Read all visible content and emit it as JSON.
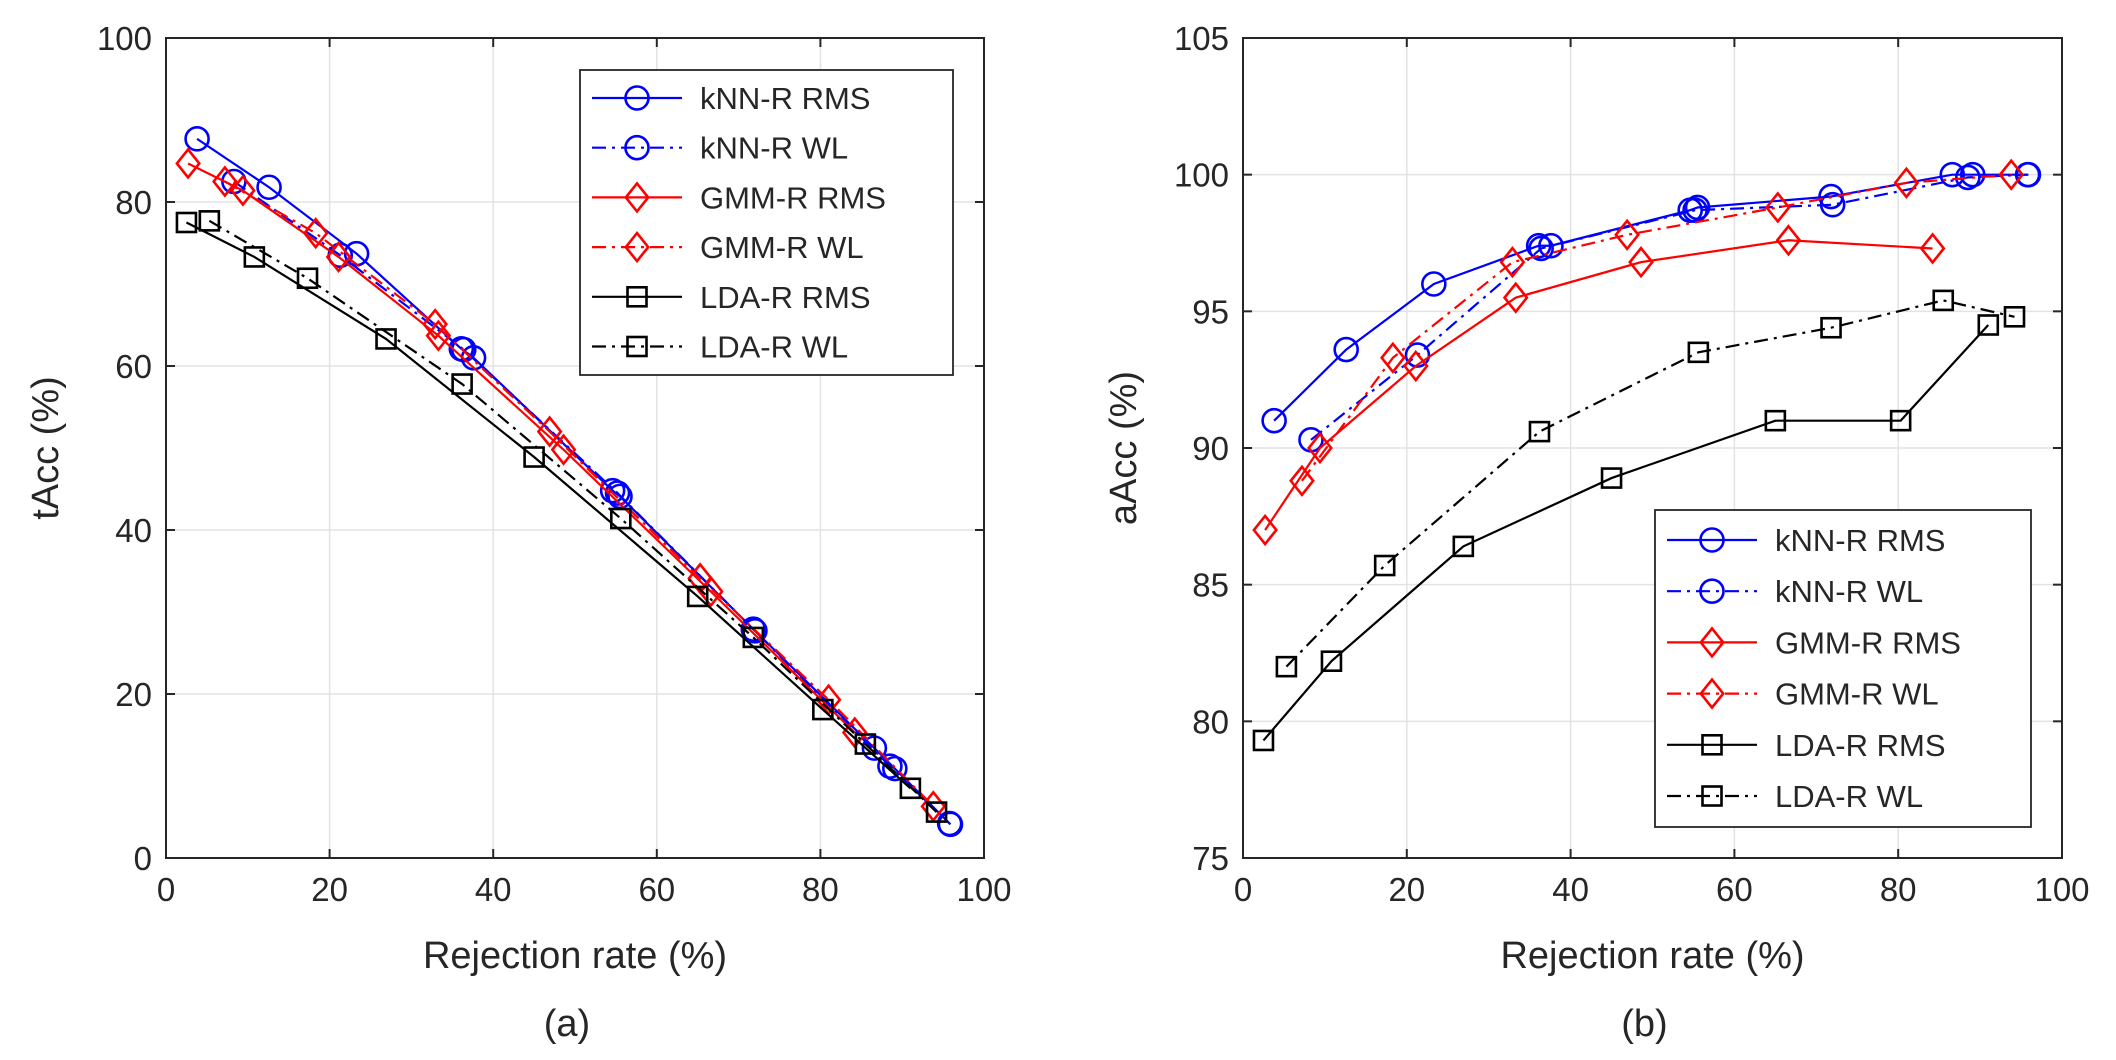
{
  "chart_data": [
    {
      "type": "line",
      "caption": "(a)",
      "xlabel": "Rejection rate (%)",
      "ylabel": "tAcc (%)",
      "xlim": [
        0,
        100
      ],
      "ylim": [
        0,
        100
      ],
      "xticks": [
        "0",
        "20",
        "40",
        "60",
        "80",
        "100"
      ],
      "yticks": [
        "0",
        "20",
        "40",
        "60",
        "80",
        "100"
      ],
      "grid": true,
      "legend_position": "top-right",
      "series": [
        {
          "name": "kNN-R RMS",
          "color": "#0000ff",
          "dash": "solid",
          "marker": "circle",
          "x": [
            3.8,
            12.6,
            23.3,
            36.1,
            37.6,
            54.6,
            55.5,
            71.8,
            86.6,
            89.1,
            95.9
          ],
          "y": [
            87.7,
            81.8,
            73.7,
            62.1,
            61.0,
            44.8,
            44.1,
            27.9,
            13.4,
            10.9,
            4.1
          ]
        },
        {
          "name": "kNN-R WL",
          "color": "#0000ff",
          "dash": "dashdot",
          "marker": "circle",
          "x": [
            8.3,
            21.3,
            36.4,
            55.2,
            72.0,
            88.5,
            95.8
          ],
          "y": [
            82.5,
            73.5,
            62.0,
            44.5,
            27.7,
            11.2,
            4.2
          ]
        },
        {
          "name": "GMM-R RMS",
          "color": "#ff0000",
          "dash": "solid",
          "marker": "diamond",
          "x": [
            2.7,
            9.4,
            21.1,
            33.3,
            48.6,
            66.6,
            84.2
          ],
          "y": [
            84.7,
            81.4,
            73.3,
            63.7,
            49.8,
            32.5,
            15.3
          ]
        },
        {
          "name": "GMM-R WL",
          "color": "#ff0000",
          "dash": "dashdot",
          "marker": "diamond",
          "x": [
            7.2,
            18.3,
            32.9,
            46.9,
            65.3,
            81.0,
            93.8
          ],
          "y": [
            82.5,
            76.2,
            65.1,
            52.0,
            34.1,
            19.3,
            6.3
          ]
        },
        {
          "name": "LDA-R RMS",
          "color": "#000000",
          "dash": "solid",
          "marker": "square",
          "x": [
            2.5,
            10.8,
            26.9,
            45.0,
            65.0,
            80.3,
            91.0
          ],
          "y": [
            77.5,
            73.3,
            63.3,
            48.9,
            31.9,
            18.1,
            8.5
          ]
        },
        {
          "name": "LDA-R WL",
          "color": "#000000",
          "dash": "dashdot",
          "marker": "square",
          "x": [
            5.3,
            17.3,
            36.2,
            55.6,
            71.8,
            85.5,
            94.2
          ],
          "y": [
            77.7,
            70.7,
            57.8,
            41.4,
            26.9,
            13.9,
            5.6
          ]
        }
      ]
    },
    {
      "type": "line",
      "caption": "(b)",
      "xlabel": "Rejection rate (%)",
      "ylabel": "aAcc (%)",
      "xlim": [
        0,
        100
      ],
      "ylim": [
        75,
        105
      ],
      "xticks": [
        "0",
        "20",
        "40",
        "60",
        "80",
        "100"
      ],
      "yticks": [
        "75",
        "80",
        "85",
        "90",
        "95",
        "100",
        "105"
      ],
      "grid": true,
      "legend_position": "bottom-right",
      "series": [
        {
          "name": "kNN-R RMS",
          "color": "#0000ff",
          "dash": "solid",
          "marker": "circle",
          "x": [
            3.8,
            12.6,
            23.3,
            36.1,
            37.6,
            54.6,
            55.5,
            71.8,
            86.6,
            89.1,
            95.9
          ],
          "y": [
            91.0,
            93.6,
            96.0,
            97.4,
            97.4,
            98.7,
            98.8,
            99.2,
            100.0,
            100.0,
            100.0
          ]
        },
        {
          "name": "kNN-R WL",
          "color": "#0000ff",
          "dash": "dashdot",
          "marker": "circle",
          "x": [
            8.3,
            21.3,
            36.4,
            55.2,
            72.0,
            88.5,
            95.8
          ],
          "y": [
            90.3,
            93.4,
            97.3,
            98.7,
            98.9,
            99.9,
            100.0
          ]
        },
        {
          "name": "GMM-R RMS",
          "color": "#ff0000",
          "dash": "solid",
          "marker": "diamond",
          "x": [
            2.7,
            9.4,
            21.1,
            33.3,
            48.6,
            66.6,
            84.2
          ],
          "y": [
            87.0,
            90.0,
            93.0,
            95.5,
            96.8,
            97.6,
            97.3
          ]
        },
        {
          "name": "GMM-R WL",
          "color": "#ff0000",
          "dash": "dashdot",
          "marker": "diamond",
          "x": [
            7.2,
            18.3,
            32.9,
            46.9,
            65.3,
            81.0,
            93.8
          ],
          "y": [
            88.8,
            93.3,
            96.8,
            97.8,
            98.8,
            99.7,
            100.0
          ]
        },
        {
          "name": "LDA-R RMS",
          "color": "#000000",
          "dash": "solid",
          "marker": "square",
          "x": [
            2.5,
            10.8,
            26.9,
            45.0,
            65.0,
            80.3,
            91.0
          ],
          "y": [
            79.3,
            82.2,
            86.4,
            88.9,
            91.0,
            91.0,
            94.5
          ]
        },
        {
          "name": "LDA-R WL",
          "color": "#000000",
          "dash": "dashdot",
          "marker": "square",
          "x": [
            5.3,
            17.3,
            36.2,
            55.6,
            71.8,
            85.5,
            94.2
          ],
          "y": [
            82.0,
            85.7,
            90.6,
            93.5,
            94.4,
            95.4,
            94.8
          ]
        }
      ]
    }
  ]
}
